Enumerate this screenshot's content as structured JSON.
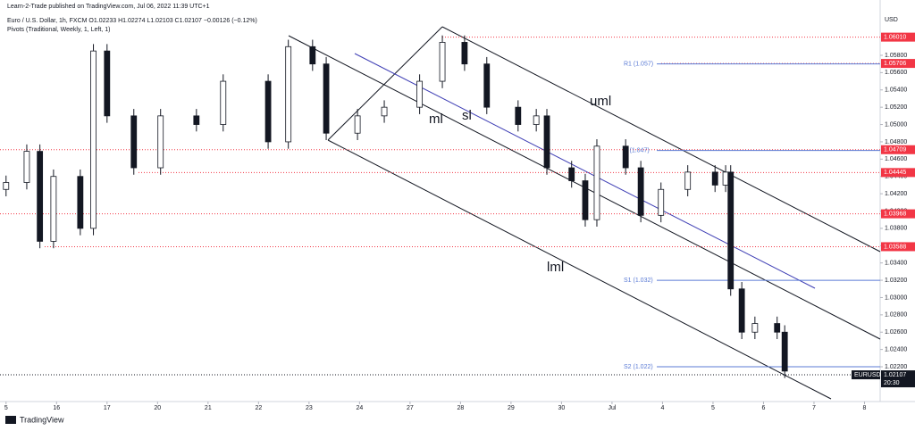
{
  "chart_data": {
    "type": "candlestick",
    "header": "Learn-2-Trade published on TradingView.com, Jul 06, 2022 11:39 UTC+1",
    "title": "Euro / U.S. Dollar, 1h, FXCM  O1.02233 H1.02274 L1.02103 C1.02107 −0.00126 (−0.12%)",
    "subtitle": "Pivots (Traditional, Weekly, 1, Left, 1)",
    "currency": "USD",
    "brand": "TradingView",
    "x": [
      0.0,
      0.41,
      0.67,
      0.94,
      1.47,
      1.73,
      2.0,
      2.53,
      3.06,
      3.77,
      4.3,
      5.19,
      5.59,
      6.07,
      6.34,
      6.96,
      7.49,
      8.19,
      8.64,
      9.08,
      9.52,
      10.14,
      10.5,
      10.71,
      11.2,
      11.47,
      11.7,
      12.27,
      12.57,
      12.97,
      13.5,
      14.04,
      14.25,
      14.35,
      14.57,
      14.83,
      15.27,
      15.42
    ],
    "open": [
      1.0425,
      1.0433,
      1.0469,
      1.0365,
      1.044,
      1.038,
      1.0585,
      1.051,
      1.045,
      1.051,
      1.05,
      1.055,
      1.048,
      1.059,
      1.057,
      1.049,
      1.051,
      1.052,
      1.055,
      1.0595,
      1.057,
      1.052,
      1.05,
      1.051,
      1.045,
      1.0435,
      1.039,
      1.0475,
      1.045,
      1.0395,
      1.0425,
      1.0445,
      1.043,
      1.0445,
      1.031,
      1.026,
      1.027,
      1.026
    ],
    "high": [
      1.0441,
      1.0477,
      1.0477,
      1.0448,
      1.0448,
      1.0593,
      1.0593,
      1.0518,
      1.0518,
      1.0518,
      1.0558,
      1.0558,
      1.0598,
      1.0598,
      1.0578,
      1.0518,
      1.0528,
      1.0558,
      1.0603,
      1.0603,
      1.0578,
      1.0528,
      1.0518,
      1.0518,
      1.0458,
      1.0443,
      1.0483,
      1.0483,
      1.0458,
      1.0433,
      1.0453,
      1.0453,
      1.0453,
      1.0453,
      1.0318,
      1.0278,
      1.0278,
      1.0268
    ],
    "low": [
      1.0417,
      1.0425,
      1.0357,
      1.0357,
      1.0372,
      1.0372,
      1.0502,
      1.0442,
      1.0442,
      1.0492,
      1.0492,
      1.0472,
      1.0472,
      1.0562,
      1.0482,
      1.0482,
      1.0502,
      1.0512,
      1.0542,
      1.0562,
      1.0512,
      1.0492,
      1.0492,
      1.0442,
      1.0427,
      1.0382,
      1.0382,
      1.0442,
      1.0387,
      1.0387,
      1.0417,
      1.0422,
      1.0422,
      1.0302,
      1.0252,
      1.0252,
      1.0252,
      1.0207
    ],
    "close": [
      1.0433,
      1.0469,
      1.0365,
      1.044,
      1.038,
      1.0585,
      1.051,
      1.045,
      1.051,
      1.05,
      1.055,
      1.048,
      1.059,
      1.057,
      1.049,
      1.051,
      1.052,
      1.055,
      1.0595,
      1.057,
      1.052,
      1.05,
      1.051,
      1.045,
      1.0435,
      1.039,
      1.0475,
      1.045,
      1.0395,
      1.0425,
      1.0445,
      1.043,
      1.0445,
      1.031,
      1.026,
      1.027,
      1.026,
      1.0215
    ],
    "xlim": [
      -0.12,
      17.31
    ],
    "xticks": [
      {
        "value": 0,
        "label": "5"
      },
      {
        "value": 1,
        "label": "16"
      },
      {
        "value": 2,
        "label": "17"
      },
      {
        "value": 3,
        "label": "20"
      },
      {
        "value": 4,
        "label": "21"
      },
      {
        "value": 5,
        "label": "22"
      },
      {
        "value": 6,
        "label": "23"
      },
      {
        "value": 7,
        "label": "24"
      },
      {
        "value": 8,
        "label": "27"
      },
      {
        "value": 9,
        "label": "28"
      },
      {
        "value": 10,
        "label": "29"
      },
      {
        "value": 11,
        "label": "30"
      },
      {
        "value": 12,
        "label": "Jul"
      },
      {
        "value": 13,
        "label": "4"
      },
      {
        "value": 14,
        "label": "5"
      },
      {
        "value": 15,
        "label": "6"
      },
      {
        "value": 16,
        "label": "7"
      },
      {
        "value": 17,
        "label": "8"
      }
    ],
    "ylim": [
      1.01798,
      1.06233
    ],
    "yticks": [
      {
        "value": 1.022,
        "label": "1.02200"
      },
      {
        "value": 1.024,
        "label": "1.02400"
      },
      {
        "value": 1.026,
        "label": "1.02600"
      },
      {
        "value": 1.028,
        "label": "1.02800"
      },
      {
        "value": 1.03,
        "label": "1.03000"
      },
      {
        "value": 1.032,
        "label": "1.03200"
      },
      {
        "value": 1.034,
        "label": "1.03400"
      },
      {
        "value": 1.036,
        "label": "1.03600"
      },
      {
        "value": 1.038,
        "label": "1.03800"
      },
      {
        "value": 1.04,
        "label": "1.04000"
      },
      {
        "value": 1.042,
        "label": "1.04200"
      },
      {
        "value": 1.044,
        "label": "1.04400"
      },
      {
        "value": 1.046,
        "label": "1.04600"
      },
      {
        "value": 1.048,
        "label": "1.04800"
      },
      {
        "value": 1.05,
        "label": "1.05000"
      },
      {
        "value": 1.052,
        "label": "1.05200"
      },
      {
        "value": 1.054,
        "label": "1.05400"
      },
      {
        "value": 1.056,
        "label": "1.05600"
      },
      {
        "value": 1.058,
        "label": "1.05800"
      }
    ],
    "levels": [
      {
        "value": 1.0601,
        "label": "1.06010"
      },
      {
        "value": 1.05706,
        "label": "1.05706"
      },
      {
        "value": 1.04709,
        "label": "1.04709"
      },
      {
        "value": 1.04445,
        "label": "1.04445"
      },
      {
        "value": 1.03968,
        "label": "1.03968"
      },
      {
        "value": 1.03588,
        "label": "1.03588"
      }
    ],
    "level_color": "#f23645",
    "pivots": [
      {
        "value": 1.057,
        "label": "R1 (1.057)"
      },
      {
        "value": 1.047,
        "label": "P (1.047)"
      },
      {
        "value": 1.032,
        "label": "S1 (1.032)"
      },
      {
        "value": 1.022,
        "label": "S2 (1.022)"
      }
    ],
    "pivot_color": "#5b7bd5",
    "last": {
      "symbol": "EURUSD",
      "price": {
        "value": 1.02107,
        "label": "1.02107"
      },
      "countdown": "20:30"
    },
    "annotations": [
      "uml",
      "ml",
      "sl",
      "lml"
    ]
  }
}
